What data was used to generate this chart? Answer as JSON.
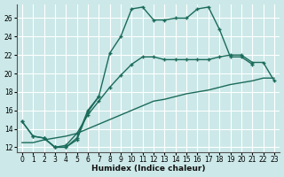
{
  "xlabel": "Humidex (Indice chaleur)",
  "background_color": "#cce8e8",
  "grid_color": "#ffffff",
  "line_color": "#1a6b5a",
  "xlim": [
    -0.5,
    23.5
  ],
  "ylim": [
    11.5,
    27.5
  ],
  "xticks": [
    0,
    1,
    2,
    3,
    4,
    5,
    6,
    7,
    8,
    9,
    10,
    11,
    12,
    13,
    14,
    15,
    16,
    17,
    18,
    19,
    20,
    21,
    22,
    23
  ],
  "yticks": [
    12,
    14,
    16,
    18,
    20,
    22,
    24,
    26
  ],
  "curve1_x": [
    0,
    1,
    2,
    3,
    4,
    5,
    6,
    7,
    8,
    9,
    10,
    11,
    12,
    13,
    14,
    15,
    16,
    17,
    18,
    19,
    20,
    21
  ],
  "curve1_y": [
    14.8,
    13.2,
    13.0,
    12.0,
    12.0,
    12.8,
    15.8,
    17.5,
    22.2,
    24.0,
    27.0,
    27.2,
    25.8,
    25.8,
    26.0,
    26.0,
    27.0,
    27.2,
    24.8,
    21.8,
    21.8,
    21.0
  ],
  "curve2_x": [
    0,
    1,
    2,
    3,
    4,
    5,
    6,
    7
  ],
  "curve2_y": [
    14.8,
    13.2,
    13.0,
    12.0,
    12.0,
    13.0,
    16.0,
    17.5
  ],
  "curve3_x": [
    0,
    1,
    2,
    3,
    4,
    5,
    6,
    7,
    8,
    9,
    10,
    11,
    12,
    13,
    14,
    15,
    16,
    17,
    18,
    19,
    20,
    21,
    22,
    23
  ],
  "curve3_y": [
    12.5,
    12.5,
    12.8,
    13.0,
    13.2,
    13.5,
    14.0,
    14.5,
    15.0,
    15.5,
    16.0,
    16.5,
    17.0,
    17.2,
    17.5,
    17.8,
    18.0,
    18.2,
    18.5,
    18.8,
    19.0,
    19.2,
    19.5,
    19.5
  ],
  "curve4_x": [
    2,
    3,
    4,
    5,
    6,
    7,
    8,
    9,
    10,
    11,
    12,
    13,
    14,
    15,
    16,
    17,
    18,
    19,
    20,
    21,
    22,
    23
  ],
  "curve4_y": [
    13.0,
    12.0,
    12.2,
    13.5,
    15.5,
    17.0,
    18.5,
    19.8,
    21.0,
    21.8,
    21.8,
    21.5,
    21.5,
    21.5,
    21.5,
    21.5,
    21.8,
    22.0,
    22.0,
    21.2,
    21.2,
    19.2
  ]
}
